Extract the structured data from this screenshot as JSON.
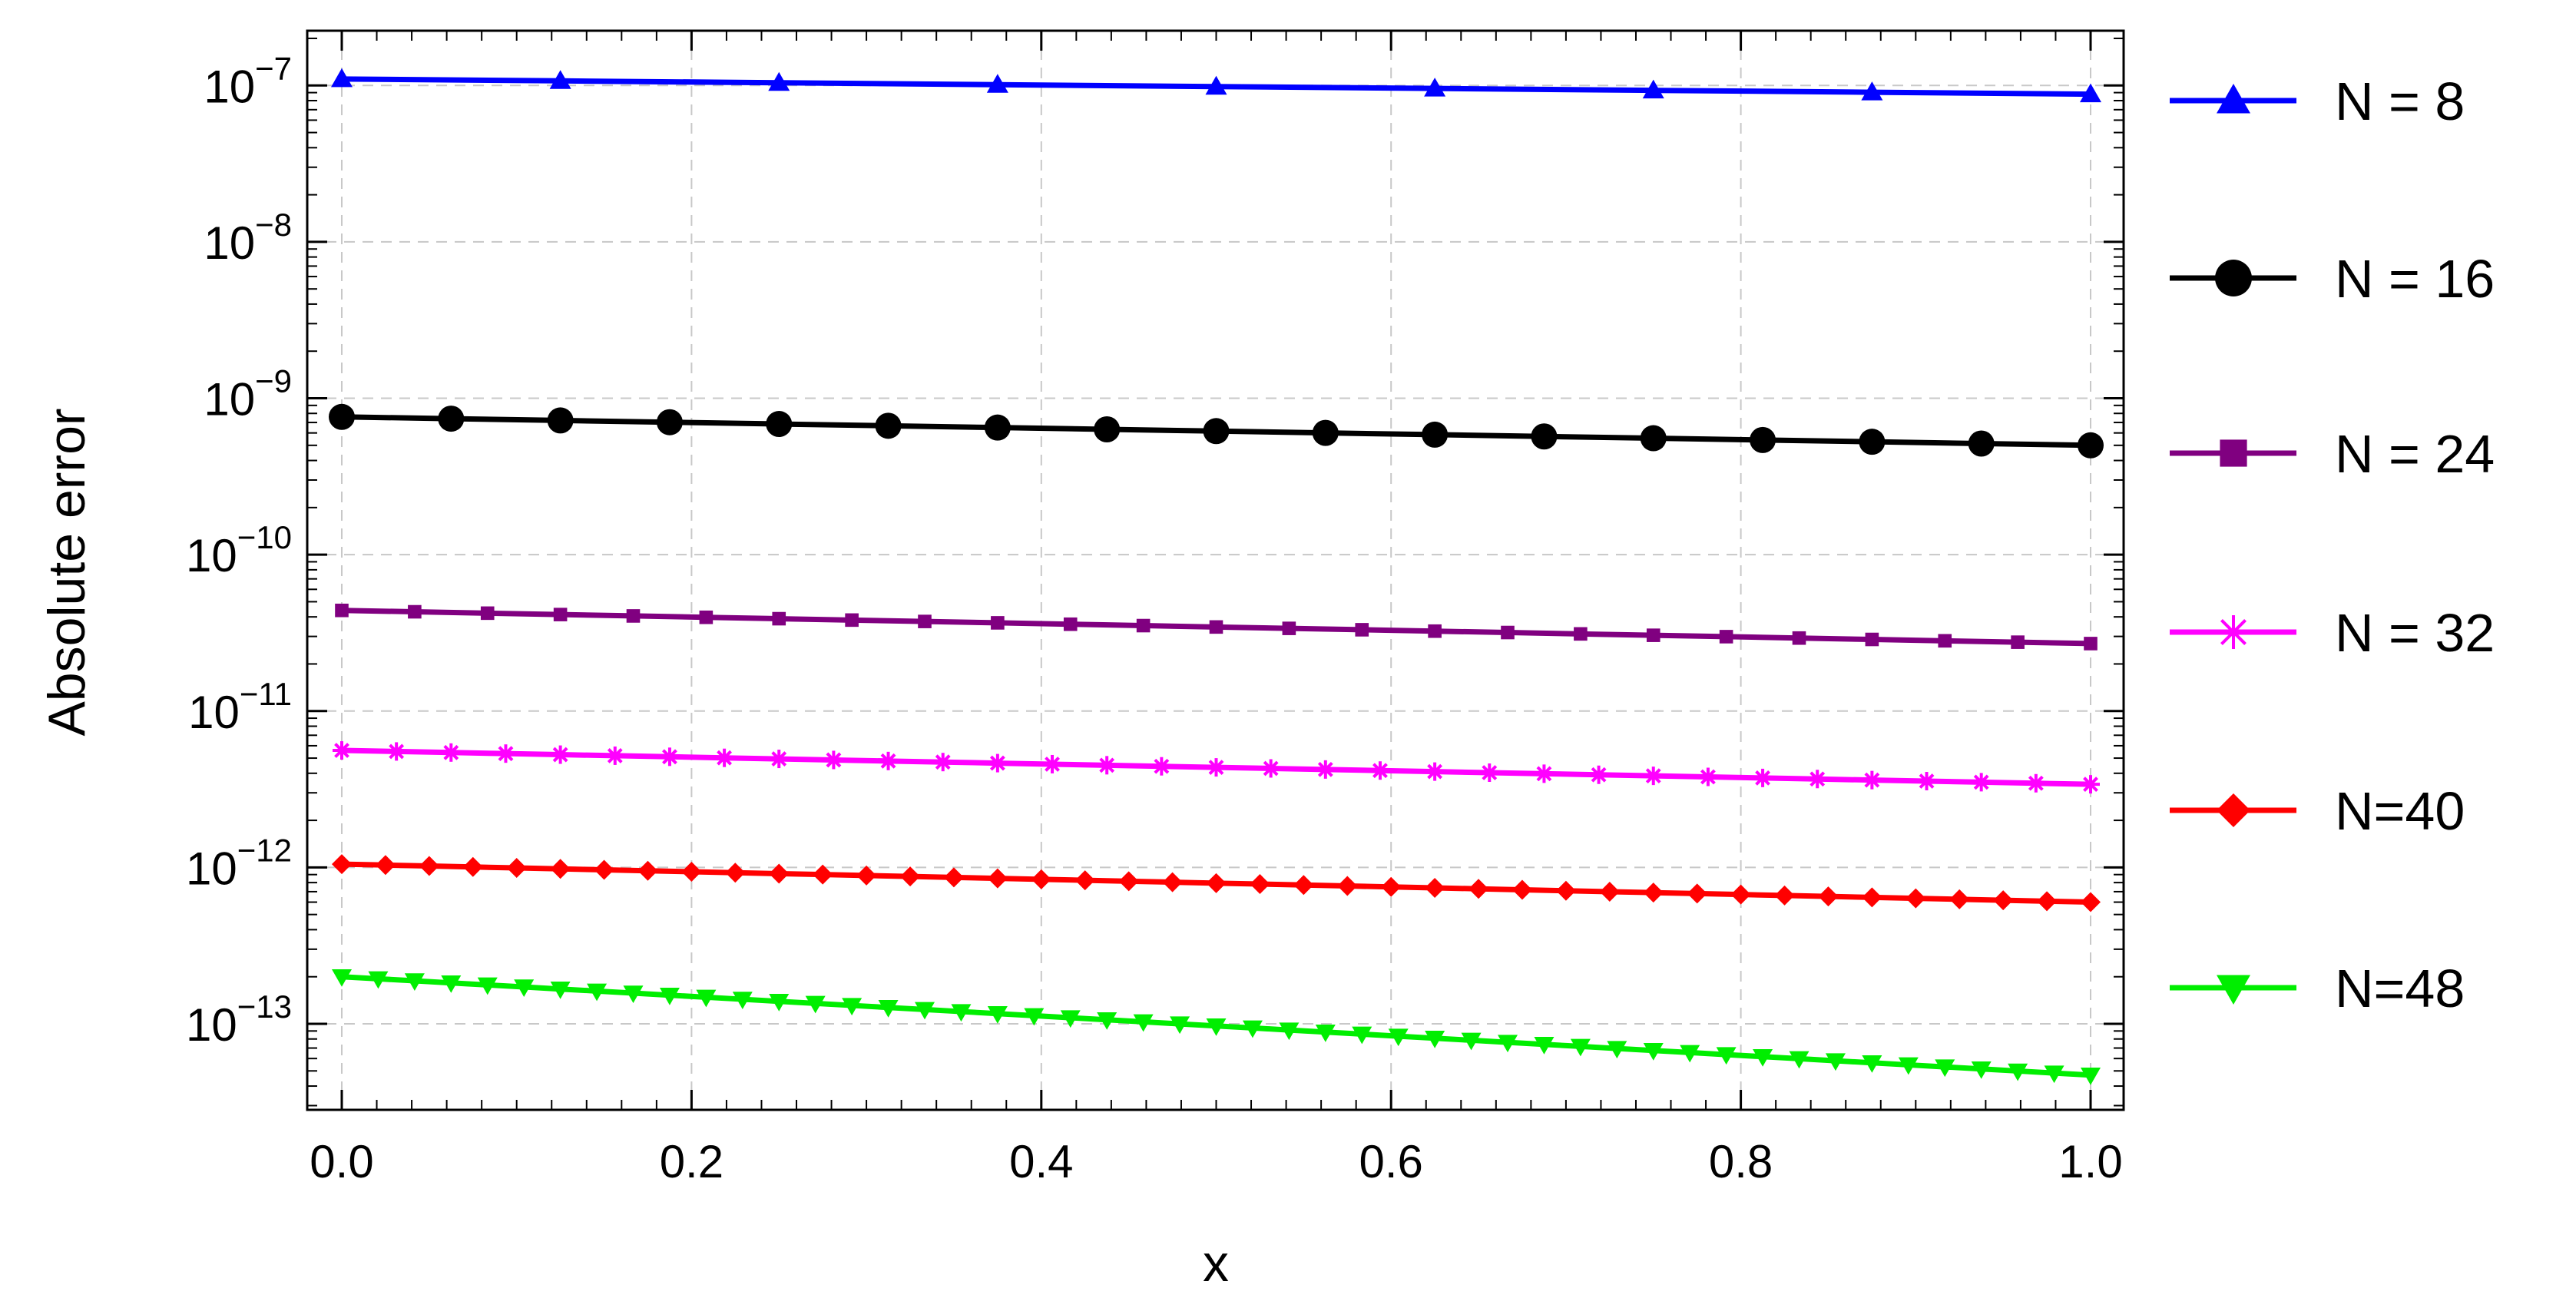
{
  "chart_data": {
    "type": "line",
    "xlabel": "x",
    "ylabel": "Absolute error",
    "xlim": [
      0,
      1
    ],
    "ylim_log10": [
      -13.55,
      -6.65
    ],
    "y_scale": "log",
    "grid": true,
    "grid_style": "dashed",
    "legend_position": "right",
    "x_ticks": [
      "0.0",
      "0.2",
      "0.4",
      "0.6",
      "0.8",
      "1.0"
    ],
    "y_ticks": [
      {
        "base": "10",
        "exp": "−7"
      },
      {
        "base": "10",
        "exp": "−8"
      },
      {
        "base": "10",
        "exp": "−9"
      },
      {
        "base": "10",
        "exp": "−10"
      },
      {
        "base": "10",
        "exp": "−11"
      },
      {
        "base": "10",
        "exp": "−12"
      },
      {
        "base": "10",
        "exp": "−13"
      }
    ],
    "series": [
      {
        "name": "N = 8",
        "color": "#0000ff",
        "marker": "triangle-up",
        "x_start": 0,
        "x_end": 1,
        "y_start": 1.1e-07,
        "y_end": 8.8e-08
      },
      {
        "name": "N = 16",
        "color": "#000000",
        "marker": "circle",
        "x_start": 0,
        "x_end": 1,
        "y_start": 7.6e-10,
        "y_end": 5e-10
      },
      {
        "name": "N = 24",
        "color": "#800080",
        "marker": "square",
        "x_start": 0,
        "x_end": 1,
        "y_start": 4.4e-11,
        "y_end": 2.7e-11
      },
      {
        "name": "N = 32",
        "color": "#ff00ff",
        "marker": "star",
        "x_start": 0,
        "x_end": 1,
        "y_start": 5.6e-12,
        "y_end": 3.4e-12
      },
      {
        "name": "N=40",
        "color": "#ff0000",
        "marker": "diamond",
        "x_start": 0,
        "x_end": 1,
        "y_start": 1.05e-12,
        "y_end": 6e-13
      },
      {
        "name": "N=48",
        "color": "#00ee00",
        "marker": "triangle-down",
        "x_start": 0,
        "x_end": 1,
        "y_start": 2e-13,
        "y_end": 4.7e-14
      }
    ]
  }
}
